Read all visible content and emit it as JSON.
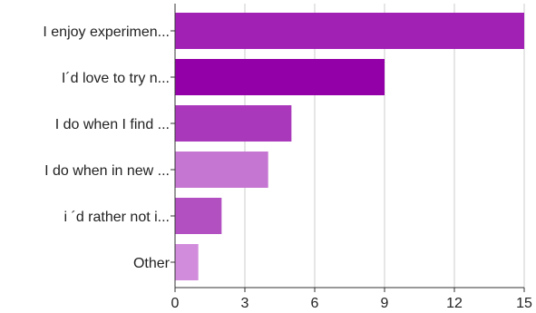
{
  "chart_data": {
    "type": "bar",
    "orientation": "horizontal",
    "categories": [
      "I enjoy experimen...",
      "I´d love to try n...",
      "I do when I find ...",
      "I do when in new ...",
      "i ´d rather not i...",
      "Other"
    ],
    "values": [
      15,
      9,
      5,
      4,
      2,
      1
    ],
    "colors": [
      "#a221b5",
      "#9400a8",
      "#aa38bb",
      "#c576d3",
      "#b250c1",
      "#d18ddc"
    ],
    "xlim": [
      0,
      15
    ],
    "xticks": [
      "0",
      "3",
      "6",
      "9",
      "12",
      "15"
    ],
    "grid": "vertical",
    "legend": "none"
  }
}
